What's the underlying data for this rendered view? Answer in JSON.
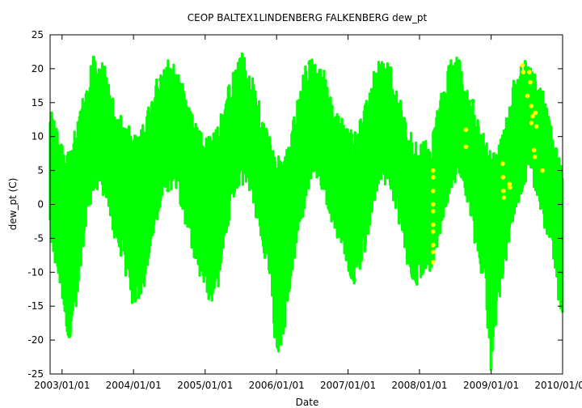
{
  "chart_data": {
    "type": "scatter",
    "title": "CEOP BALTEX1LINDENBERG FALKENBERG  dew_pt",
    "xlabel": "Date",
    "ylabel": "dew_pt (C)",
    "xlim": [
      "2002-11-01",
      "2010-01-01"
    ],
    "ylim": [
      -25,
      25
    ],
    "x_ticks": [
      "2003/01/01",
      "2004/01/01",
      "2005/01/01",
      "2006/01/01",
      "2007/01/01",
      "2008/01/01",
      "2009/01/01",
      "2010/01/01"
    ],
    "y_ticks": [
      -25,
      -20,
      -15,
      -10,
      -5,
      0,
      5,
      10,
      15,
      20,
      25
    ],
    "grid": false,
    "legend": "none",
    "colors": {
      "primary": "#00ff00",
      "flagged": "#ffff00"
    },
    "series": [
      {
        "color": "#00ff00",
        "description": "hourly dew point envelope (date, min, max)",
        "envelope": [
          [
            "2002-11-01",
            -3,
            13
          ],
          [
            "2002-12-01",
            -8,
            10
          ],
          [
            "2003-01-01",
            -12,
            8
          ],
          [
            "2003-02-01",
            -20,
            7
          ],
          [
            "2003-03-01",
            -16,
            9
          ],
          [
            "2003-04-01",
            -10,
            12
          ],
          [
            "2003-05-01",
            -2,
            16
          ],
          [
            "2003-06-01",
            2,
            20
          ],
          [
            "2003-07-01",
            4,
            20
          ],
          [
            "2003-08-01",
            3,
            19
          ],
          [
            "2003-09-01",
            0,
            16
          ],
          [
            "2003-10-01",
            -5,
            13
          ],
          [
            "2003-11-01",
            -6,
            11
          ],
          [
            "2003-12-01",
            -10,
            10
          ],
          [
            "2004-01-01",
            -14,
            9
          ],
          [
            "2004-02-01",
            -12,
            10
          ],
          [
            "2004-03-01",
            -10,
            11
          ],
          [
            "2004-04-01",
            -5,
            14
          ],
          [
            "2004-05-01",
            -1,
            17
          ],
          [
            "2004-06-01",
            3,
            18
          ],
          [
            "2004-07-01",
            4,
            20
          ],
          [
            "2004-08-01",
            4,
            19
          ],
          [
            "2004-09-01",
            1,
            17
          ],
          [
            "2004-10-01",
            -3,
            14
          ],
          [
            "2004-11-01",
            -6,
            11
          ],
          [
            "2004-12-01",
            -9,
            9
          ],
          [
            "2005-01-01",
            -12,
            9
          ],
          [
            "2005-02-01",
            -13,
            8
          ],
          [
            "2005-03-01",
            -12,
            10
          ],
          [
            "2005-04-01",
            -6,
            13
          ],
          [
            "2005-05-01",
            -1,
            16
          ],
          [
            "2005-06-01",
            3,
            19
          ],
          [
            "2005-07-01",
            5,
            21
          ],
          [
            "2005-08-01",
            4,
            20
          ],
          [
            "2005-09-01",
            2,
            17
          ],
          [
            "2005-10-01",
            -2,
            14
          ],
          [
            "2005-11-01",
            -6,
            10
          ],
          [
            "2005-12-01",
            -10,
            8
          ],
          [
            "2006-01-01",
            -22,
            5
          ],
          [
            "2006-02-01",
            -18,
            6
          ],
          [
            "2006-03-01",
            -14,
            8
          ],
          [
            "2006-04-01",
            -7,
            12
          ],
          [
            "2006-05-01",
            -2,
            16
          ],
          [
            "2006-06-01",
            2,
            19
          ],
          [
            "2006-07-01",
            5,
            20
          ],
          [
            "2006-08-01",
            5,
            19
          ],
          [
            "2006-09-01",
            3,
            18
          ],
          [
            "2006-10-01",
            0,
            15
          ],
          [
            "2006-11-01",
            -3,
            12
          ],
          [
            "2006-12-01",
            -5,
            11
          ],
          [
            "2007-01-01",
            -8,
            10
          ],
          [
            "2007-02-01",
            -10,
            9
          ],
          [
            "2007-03-01",
            -8,
            11
          ],
          [
            "2007-04-01",
            -5,
            13
          ],
          [
            "2007-05-01",
            0,
            17
          ],
          [
            "2007-06-01",
            4,
            19
          ],
          [
            "2007-07-01",
            5,
            20
          ],
          [
            "2007-08-01",
            4,
            19
          ],
          [
            "2007-09-01",
            1,
            16
          ],
          [
            "2007-10-01",
            -3,
            13
          ],
          [
            "2007-11-01",
            -8,
            10
          ],
          [
            "2007-12-01",
            -11,
            8
          ],
          [
            "2008-01-01",
            -10,
            8
          ],
          [
            "2008-02-01",
            -8,
            8
          ],
          [
            "2008-03-01",
            -8,
            8
          ],
          [
            "2008-04-01",
            -5,
            12
          ],
          [
            "2008-05-01",
            -1,
            16
          ],
          [
            "2008-06-01",
            3,
            19
          ],
          [
            "2008-07-01",
            5,
            21
          ],
          [
            "2008-08-01",
            4,
            19
          ],
          [
            "2008-09-01",
            1,
            16
          ],
          [
            "2008-10-01",
            -3,
            14
          ],
          [
            "2008-11-01",
            -7,
            11
          ],
          [
            "2008-12-01",
            -11,
            8
          ],
          [
            "2009-01-01",
            -24,
            6
          ],
          [
            "2009-02-01",
            -14,
            7
          ],
          [
            "2009-03-01",
            -10,
            9
          ],
          [
            "2009-04-01",
            -4,
            14
          ],
          [
            "2009-05-01",
            0,
            17
          ],
          [
            "2009-06-01",
            3,
            19
          ],
          [
            "2009-07-01",
            5,
            20
          ],
          [
            "2009-08-01",
            5,
            19
          ],
          [
            "2009-09-01",
            2,
            17
          ],
          [
            "2009-10-01",
            -2,
            14
          ],
          [
            "2009-11-01",
            -4,
            11
          ],
          [
            "2009-12-01",
            -10,
            8
          ],
          [
            "2009-12-31",
            -17,
            3
          ]
        ]
      },
      {
        "color": "#ffff00",
        "description": "flagged observations (date, value)",
        "points": [
          [
            "2008-03-10",
            5
          ],
          [
            "2008-03-10",
            2
          ],
          [
            "2008-03-10",
            -1
          ],
          [
            "2008-03-10",
            -4
          ],
          [
            "2008-03-10",
            -7
          ],
          [
            "2008-03-10",
            -8.5
          ],
          [
            "2008-03-11",
            4
          ],
          [
            "2008-03-11",
            0
          ],
          [
            "2008-03-11",
            -3
          ],
          [
            "2008-03-11",
            -6
          ],
          [
            "2008-08-25",
            11
          ],
          [
            "2008-08-25",
            8.5
          ],
          [
            "2009-03-01",
            6
          ],
          [
            "2009-03-03",
            4
          ],
          [
            "2009-03-05",
            2
          ],
          [
            "2009-03-07",
            1
          ],
          [
            "2009-04-05",
            3
          ],
          [
            "2009-04-07",
            2.5
          ],
          [
            "2009-06-10",
            20.5
          ],
          [
            "2009-06-14",
            19.5
          ],
          [
            "2009-07-05",
            16
          ],
          [
            "2009-07-15",
            19.5
          ],
          [
            "2009-07-20",
            18
          ],
          [
            "2009-07-25",
            14.5
          ],
          [
            "2009-07-25",
            12
          ],
          [
            "2009-08-01",
            13
          ],
          [
            "2009-08-08",
            8
          ],
          [
            "2009-08-12",
            7
          ],
          [
            "2009-08-15",
            13.5
          ],
          [
            "2009-08-20",
            11.5
          ],
          [
            "2009-09-20",
            5
          ]
        ]
      }
    ]
  }
}
